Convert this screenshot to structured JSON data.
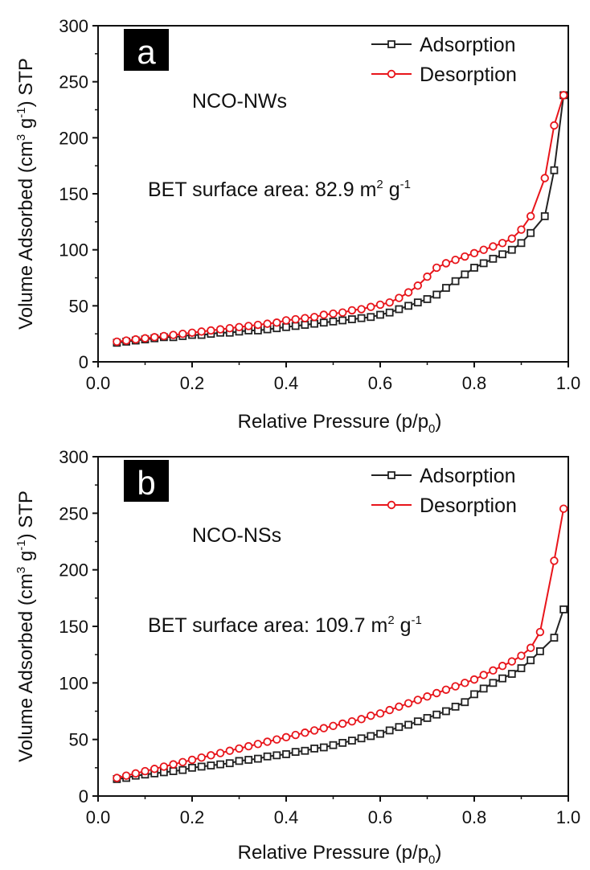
{
  "chart_data": [
    {
      "type": "line",
      "panel_label": "a",
      "sample_label": "NCO-NWs",
      "annotation": {
        "prefix": "BET surface area: 82.9 m",
        "sup1": "2",
        "mid": " g",
        "sup2": "-1"
      },
      "xlabel": {
        "text": "Relative Pressure (p/p",
        "sub": "0",
        "tail": ")"
      },
      "ylabel": {
        "pre": "Volume Adsorbed (cm",
        "sup1": "3",
        "mid": " g",
        "sup2": "-1",
        "post": ") STP"
      },
      "xlim": [
        0.0,
        1.0
      ],
      "ylim": [
        0,
        300
      ],
      "xticks": [
        "0.0",
        "0.2",
        "0.4",
        "0.6",
        "0.8",
        "1.0"
      ],
      "yticks": [
        "0",
        "50",
        "100",
        "150",
        "200",
        "250",
        "300"
      ],
      "legend_position": "top-right",
      "series": [
        {
          "name": "Adsorption",
          "color": "#222222",
          "marker": "square",
          "x": [
            0.04,
            0.06,
            0.08,
            0.1,
            0.12,
            0.14,
            0.16,
            0.18,
            0.2,
            0.22,
            0.24,
            0.26,
            0.28,
            0.3,
            0.32,
            0.34,
            0.36,
            0.38,
            0.4,
            0.42,
            0.44,
            0.46,
            0.48,
            0.5,
            0.52,
            0.54,
            0.56,
            0.58,
            0.6,
            0.62,
            0.64,
            0.66,
            0.68,
            0.7,
            0.72,
            0.74,
            0.76,
            0.78,
            0.8,
            0.82,
            0.84,
            0.86,
            0.88,
            0.9,
            0.92,
            0.95,
            0.97,
            0.99
          ],
          "y": [
            17,
            18,
            19,
            20,
            21,
            22,
            22,
            23,
            24,
            24,
            25,
            26,
            26,
            27,
            28,
            28,
            29,
            30,
            31,
            32,
            33,
            34,
            35,
            36,
            37,
            38,
            39,
            40,
            42,
            44,
            47,
            50,
            53,
            56,
            60,
            66,
            72,
            78,
            84,
            88,
            92,
            96,
            100,
            106,
            115,
            130,
            171,
            238
          ]
        },
        {
          "name": "Desorption",
          "color": "#e8151b",
          "marker": "circle",
          "x": [
            0.04,
            0.06,
            0.08,
            0.1,
            0.12,
            0.14,
            0.16,
            0.18,
            0.2,
            0.22,
            0.24,
            0.26,
            0.28,
            0.3,
            0.32,
            0.34,
            0.36,
            0.38,
            0.4,
            0.42,
            0.44,
            0.46,
            0.48,
            0.5,
            0.52,
            0.54,
            0.56,
            0.58,
            0.6,
            0.62,
            0.64,
            0.66,
            0.68,
            0.7,
            0.72,
            0.74,
            0.76,
            0.78,
            0.8,
            0.82,
            0.84,
            0.86,
            0.88,
            0.9,
            0.92,
            0.95,
            0.97,
            0.99
          ],
          "y": [
            18,
            19,
            20,
            21,
            22,
            23,
            24,
            25,
            26,
            27,
            28,
            29,
            30,
            31,
            32,
            33,
            34,
            35,
            37,
            38,
            39,
            40,
            42,
            43,
            44,
            46,
            47,
            49,
            51,
            53,
            57,
            62,
            68,
            76,
            84,
            88,
            91,
            94,
            97,
            100,
            103,
            106,
            110,
            118,
            130,
            164,
            211,
            238
          ]
        }
      ]
    },
    {
      "type": "line",
      "panel_label": "b",
      "sample_label": "NCO-NSs",
      "annotation": {
        "prefix": "BET surface area: 109.7 m",
        "sup1": "2",
        "mid": " g",
        "sup2": "-1"
      },
      "xlabel": {
        "text": "Relative Pressure (p/p",
        "sub": "0",
        "tail": ")"
      },
      "ylabel": {
        "pre": "Volume Adsorbed (cm",
        "sup1": "3",
        "mid": " g",
        "sup2": "-1",
        "post": ") STP"
      },
      "xlim": [
        0.0,
        1.0
      ],
      "ylim": [
        0,
        300
      ],
      "xticks": [
        "0.0",
        "0.2",
        "0.4",
        "0.6",
        "0.8",
        "1.0"
      ],
      "yticks": [
        "0",
        "50",
        "100",
        "150",
        "200",
        "250",
        "300"
      ],
      "legend_position": "top-right",
      "series": [
        {
          "name": "Adsorption",
          "color": "#222222",
          "marker": "square",
          "x": [
            0.04,
            0.06,
            0.08,
            0.1,
            0.12,
            0.14,
            0.16,
            0.18,
            0.2,
            0.22,
            0.24,
            0.26,
            0.28,
            0.3,
            0.32,
            0.34,
            0.36,
            0.38,
            0.4,
            0.42,
            0.44,
            0.46,
            0.48,
            0.5,
            0.52,
            0.54,
            0.56,
            0.58,
            0.6,
            0.62,
            0.64,
            0.66,
            0.68,
            0.7,
            0.72,
            0.74,
            0.76,
            0.78,
            0.8,
            0.82,
            0.84,
            0.86,
            0.88,
            0.9,
            0.92,
            0.94,
            0.97,
            0.99
          ],
          "y": [
            15,
            16,
            18,
            19,
            20,
            21,
            22,
            23,
            25,
            26,
            27,
            28,
            29,
            31,
            32,
            33,
            35,
            36,
            37,
            39,
            40,
            42,
            43,
            45,
            47,
            49,
            51,
            53,
            55,
            58,
            61,
            63,
            66,
            69,
            72,
            75,
            79,
            83,
            90,
            95,
            100,
            104,
            108,
            113,
            120,
            128,
            140,
            165
          ]
        },
        {
          "name": "Desorption",
          "color": "#e8151b",
          "marker": "circle",
          "x": [
            0.04,
            0.06,
            0.08,
            0.1,
            0.12,
            0.14,
            0.16,
            0.18,
            0.2,
            0.22,
            0.24,
            0.26,
            0.28,
            0.3,
            0.32,
            0.34,
            0.36,
            0.38,
            0.4,
            0.42,
            0.44,
            0.46,
            0.48,
            0.5,
            0.52,
            0.54,
            0.56,
            0.58,
            0.6,
            0.62,
            0.64,
            0.66,
            0.68,
            0.7,
            0.72,
            0.74,
            0.76,
            0.78,
            0.8,
            0.82,
            0.84,
            0.86,
            0.88,
            0.9,
            0.92,
            0.94,
            0.97,
            0.99
          ],
          "y": [
            16,
            18,
            20,
            22,
            24,
            26,
            28,
            30,
            32,
            34,
            36,
            38,
            40,
            42,
            44,
            46,
            48,
            50,
            52,
            54,
            56,
            58,
            60,
            62,
            64,
            66,
            68,
            71,
            73,
            76,
            79,
            82,
            85,
            88,
            91,
            94,
            97,
            100,
            103,
            107,
            111,
            115,
            119,
            124,
            131,
            145,
            208,
            254
          ]
        }
      ]
    }
  ]
}
